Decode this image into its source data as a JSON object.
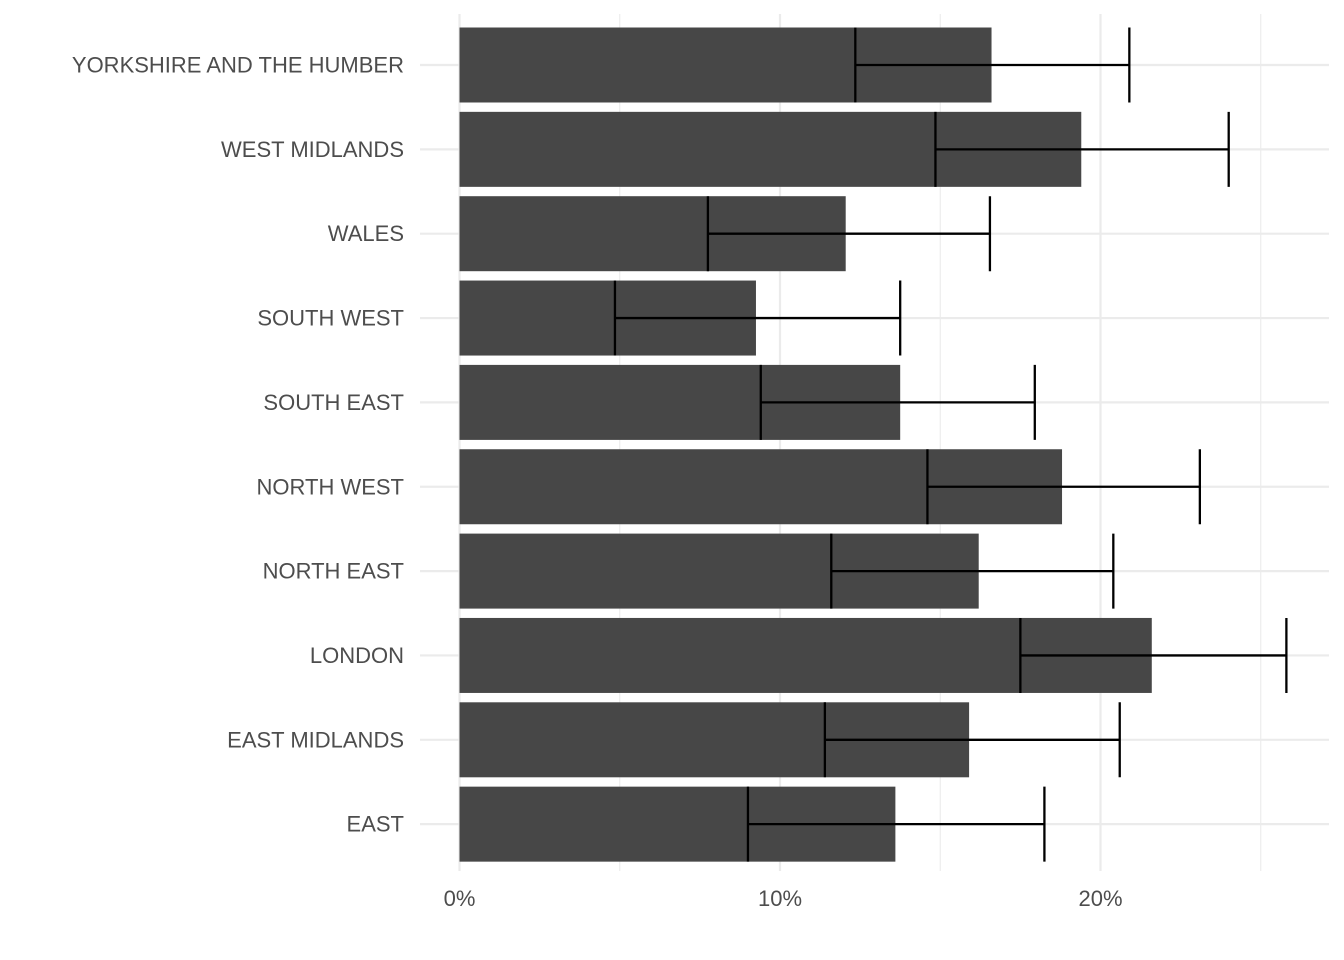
{
  "chart_data": {
    "type": "bar",
    "orientation": "horizontal",
    "title": "",
    "xlabel": "",
    "ylabel": "",
    "categories": [
      "EAST",
      "EAST MIDLANDS",
      "LONDON",
      "NORTH EAST",
      "NORTH WEST",
      "SOUTH EAST",
      "SOUTH WEST",
      "WALES",
      "WEST MIDLANDS",
      "YORKSHIRE AND THE HUMBER"
    ],
    "values": [
      13.6,
      15.9,
      21.6,
      16.2,
      18.8,
      13.75,
      9.25,
      12.05,
      19.4,
      16.6
    ],
    "error_low": [
      9.0,
      11.4,
      17.5,
      11.6,
      14.6,
      9.4,
      4.85,
      7.75,
      14.85,
      12.35
    ],
    "error_high": [
      18.25,
      20.6,
      25.8,
      20.4,
      23.1,
      17.95,
      13.75,
      16.55,
      24.0,
      20.9
    ],
    "xlim": [
      0,
      27
    ],
    "x_ticks": [
      0,
      10,
      20
    ],
    "x_tick_labels": [
      "0%",
      "10%",
      "20%"
    ],
    "grid": true,
    "legend": "none",
    "colors": {
      "bar": "#474747",
      "errorbar": "#000000",
      "grid": "#ebebeb",
      "text": "#4d4d4d"
    }
  }
}
